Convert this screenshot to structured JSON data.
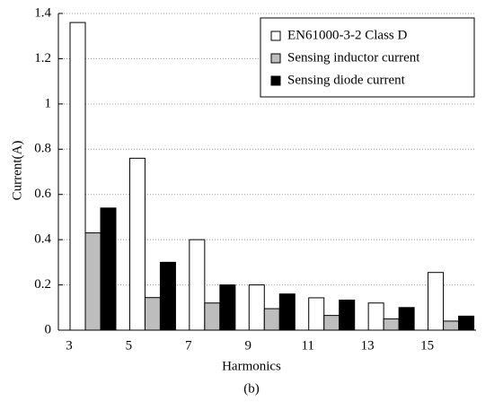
{
  "chart_data": {
    "type": "bar",
    "caption": "(b)",
    "xlabel": "Harmonics",
    "ylabel": "Current(A)",
    "categories": [
      "3",
      "5",
      "7",
      "9",
      "11",
      "13",
      "15"
    ],
    "series": [
      {
        "name": "EN61000-3-2 Class D",
        "color": "#ffffff",
        "values": [
          1.36,
          0.76,
          0.4,
          0.2,
          0.143,
          0.12,
          0.255
        ]
      },
      {
        "name": "Sensing inductor current",
        "color": "#bdbdbd",
        "values": [
          0.43,
          0.144,
          0.12,
          0.095,
          0.065,
          0.05,
          0.04
        ]
      },
      {
        "name": "Sensing diode current",
        "color": "#000000",
        "values": [
          0.54,
          0.3,
          0.2,
          0.16,
          0.133,
          0.1,
          0.062
        ]
      }
    ],
    "ylim": [
      0,
      1.4
    ],
    "yticks": [
      0,
      0.2,
      0.4,
      0.6,
      0.8,
      1,
      1.2,
      1.4
    ],
    "grid": true,
    "legend": "upper right"
  }
}
